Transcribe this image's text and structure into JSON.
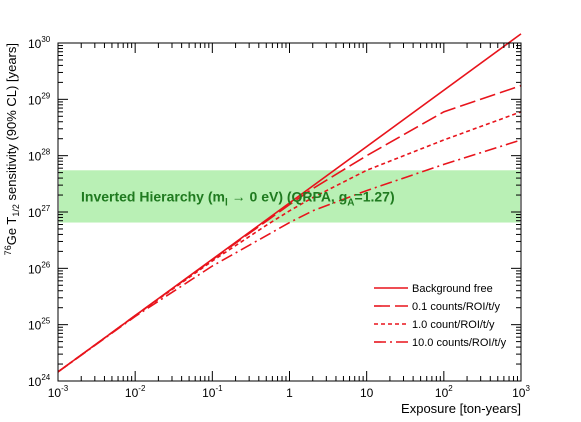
{
  "chart_data": {
    "type": "line",
    "xlabel": "Exposure [ton-years]",
    "ylabel_base": "Ge T",
    "ylabel_sup": "76",
    "ylabel_sub": "1/2",
    "ylabel_rest": " sensitivity (90% CL) [years]",
    "x_scale": "log",
    "y_scale": "log",
    "xlim": [
      0.001,
      1000
    ],
    "ylim": [
      1e+24,
      1e+30
    ],
    "x_tick_labels": [
      {
        "value": 0.001,
        "base": "10",
        "exp": "-3"
      },
      {
        "value": 0.01,
        "base": "10",
        "exp": "-2"
      },
      {
        "value": 0.1,
        "base": "10",
        "exp": "-1"
      },
      {
        "value": 1,
        "base": "1",
        "exp": ""
      },
      {
        "value": 10,
        "base": "10",
        "exp": ""
      },
      {
        "value": 100,
        "base": "10",
        "exp": "2"
      },
      {
        "value": 1000,
        "base": "10",
        "exp": "3"
      }
    ],
    "y_tick_labels": [
      {
        "value": 1e+24,
        "base": "10",
        "exp": "24"
      },
      {
        "value": 1e+25,
        "base": "10",
        "exp": "25"
      },
      {
        "value": 1e+26,
        "base": "10",
        "exp": "26"
      },
      {
        "value": 1e+27,
        "base": "10",
        "exp": "27"
      },
      {
        "value": 1e+28,
        "base": "10",
        "exp": "28"
      },
      {
        "value": 1e+29,
        "base": "10",
        "exp": "29"
      },
      {
        "value": 1e+30,
        "base": "10",
        "exp": "30"
      }
    ],
    "band": {
      "label_main": "Inverted Hierarchy (m",
      "label_sub1": "l",
      "label_mid": " → 0 eV) (QRPA, g",
      "label_sub2": "A",
      "label_end": "=1.27)",
      "y_low": 6.5e+26,
      "y_high": 5.5e+27,
      "color": "#b9f0b5"
    },
    "line_color": "#e8141c",
    "series": [
      {
        "name": "Background free",
        "dash": "solid",
        "x": [
          0.001,
          1000
        ],
        "y": [
          1.45e+24,
          1.45e+30
        ]
      },
      {
        "name": "0.1 counts/ROI/t/y",
        "dash": "longdash",
        "x": [
          0.001,
          0.01,
          0.1,
          1,
          2,
          10,
          100,
          1000
        ],
        "y": [
          1.45e+24,
          1.45e+25,
          1.42e+26,
          1.35e+27,
          2.6e+27,
          1e+28,
          6e+28,
          1.75e+29
        ]
      },
      {
        "name": "1.0 count/ROI/t/y",
        "dash": "dotted",
        "x": [
          0.001,
          0.01,
          0.1,
          0.5,
          1,
          2,
          10,
          100,
          1000
        ],
        "y": [
          1.45e+24,
          1.44e+25,
          1.35e+26,
          5.8e+26,
          1.05e+27,
          1.8e+27,
          5.5e+27,
          1.9e+28,
          6e+28
        ]
      },
      {
        "name": "10.0 counts/ROI/t/y",
        "dash": "dashdot",
        "x": [
          0.001,
          0.01,
          0.1,
          0.5,
          1,
          2,
          10,
          100,
          1000
        ],
        "y": [
          1.45e+24,
          1.4e+25,
          1.1e+26,
          3.8e+26,
          6.5e+26,
          1.05e+27,
          2.4e+27,
          7e+27,
          1.9e+28
        ]
      }
    ],
    "legend_position": "lower-right"
  }
}
